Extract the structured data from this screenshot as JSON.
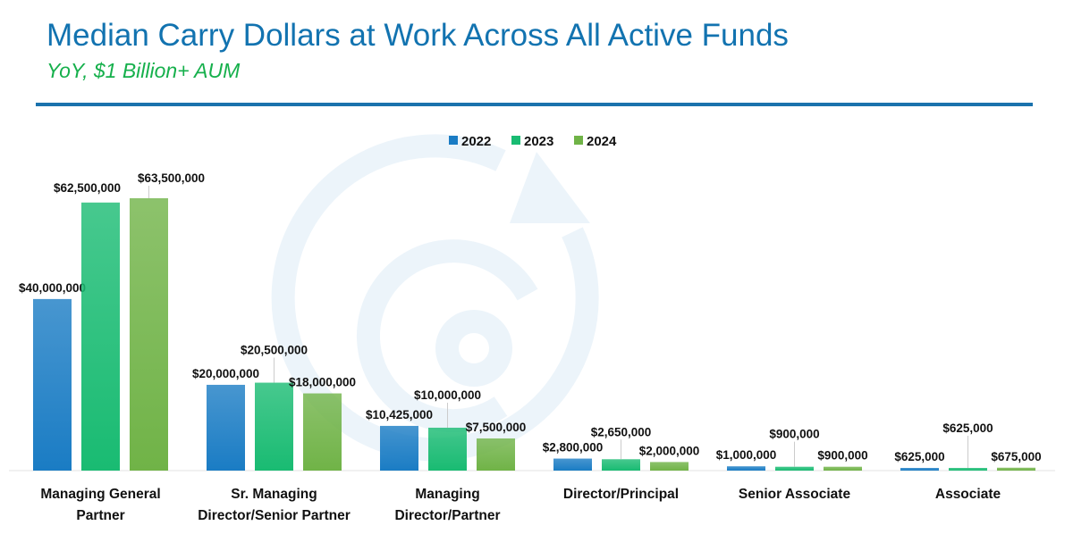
{
  "title": "Median Carry Dollars at Work Across All Active Funds",
  "subtitle": "YoY, $1 Billion+ AUM",
  "chart_data": {
    "type": "bar",
    "categories": [
      [
        "Managing General",
        "Partner"
      ],
      [
        "Sr. Managing",
        "Director/Senior Partner"
      ],
      [
        "Managing",
        "Director/Partner"
      ],
      [
        "Director/Principal"
      ],
      [
        "Senior Associate"
      ],
      [
        "Associate"
      ]
    ],
    "series": [
      {
        "name": "2022",
        "color": "#1a7cc4",
        "values": [
          40000000,
          20000000,
          10425000,
          2800000,
          1000000,
          625000
        ],
        "labels": [
          "$40,000,000",
          "$20,000,000",
          "$10,425,000",
          "$2,800,000",
          "$1,000,000",
          "$625,000"
        ]
      },
      {
        "name": "2023",
        "color": "#19bb72",
        "values": [
          62500000,
          20500000,
          10000000,
          2650000,
          900000,
          625000
        ],
        "labels": [
          "$62,500,000",
          "$20,500,000",
          "$10,000,000",
          "$2,650,000",
          "$900,000",
          "$625,000"
        ]
      },
      {
        "name": "2024",
        "color": "#70b347",
        "values": [
          63500000,
          18000000,
          7500000,
          2000000,
          900000,
          675000
        ],
        "labels": [
          "$63,500,000",
          "$18,000,000",
          "$7,500,000",
          "$2,000,000",
          "$900,000",
          "$675,000"
        ]
      }
    ],
    "ylim": [
      0,
      63500000
    ],
    "legend": "top-center",
    "grid": false
  }
}
